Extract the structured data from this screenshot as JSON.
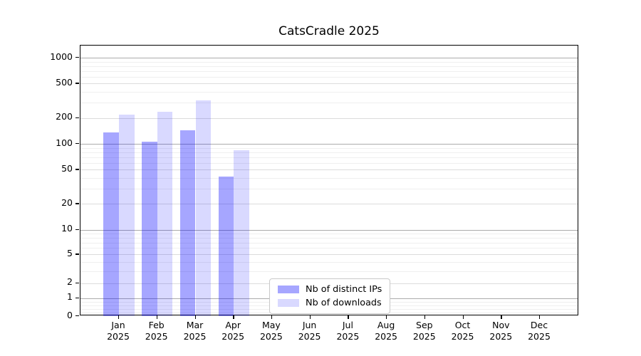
{
  "title": "CatsCradle 2025",
  "chart_data": {
    "type": "bar",
    "title": "CatsCradle 2025",
    "categories": [
      "Jan",
      "Feb",
      "Mar",
      "Apr",
      "May",
      "Jun",
      "Jul",
      "Aug",
      "Sep",
      "Oct",
      "Nov",
      "Dec"
    ],
    "x_tick_second_line": "2025",
    "series": [
      {
        "name": "Nb of distinct IPs",
        "color": "rgba(0,0,255,0.35)",
        "apparent_hex": "#a6a6ff",
        "values": [
          135,
          105,
          145,
          42,
          null,
          null,
          null,
          null,
          null,
          null,
          null,
          null
        ]
      },
      {
        "name": "Nb of downloads",
        "color": "rgba(0,0,255,0.15)",
        "apparent_hex": "#d9d9ff",
        "values": [
          220,
          235,
          320,
          85,
          null,
          null,
          null,
          null,
          null,
          null,
          null,
          null
        ]
      }
    ],
    "y_axis": {
      "scale": "asinh",
      "linear_width": 2,
      "ticks": [
        0,
        1,
        2,
        5,
        10,
        20,
        50,
        100,
        200,
        500,
        1000
      ],
      "minor_ticks": [
        0.2,
        0.4,
        0.6,
        0.8,
        3,
        4,
        6,
        7,
        8,
        9,
        30,
        40,
        60,
        70,
        80,
        90,
        300,
        400,
        600,
        700,
        800,
        900
      ],
      "top_value": 1000
    },
    "grid": true,
    "legend_position": "bottom-center"
  }
}
